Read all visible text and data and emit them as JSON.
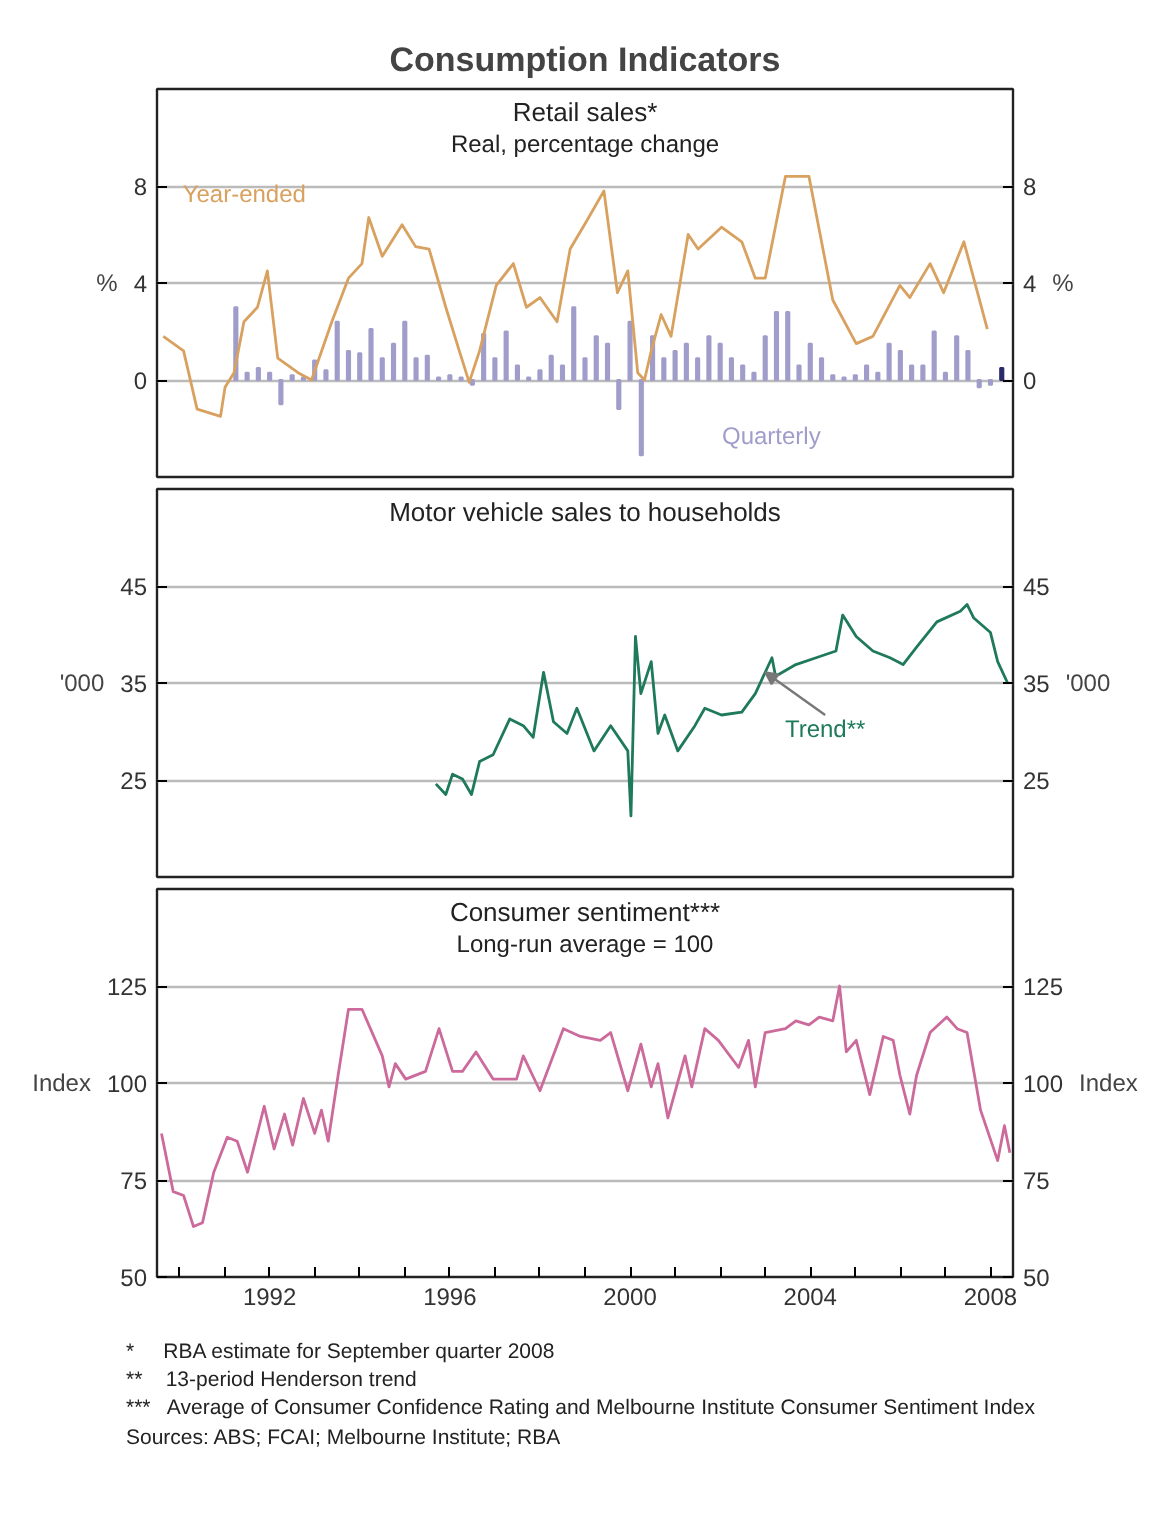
{
  "chart_data": [
    {
      "type": "line",
      "title": "Consumption Indicators",
      "subtitle": "Retail sales*\nReal, percentage change",
      "ylabel": "%",
      "y2label": "%",
      "xlim": [
        1989.5,
        2008.5
      ],
      "ylim": [
        -4,
        12
      ],
      "yticks": [
        0,
        4,
        8
      ],
      "y2lim": [
        -4,
        12
      ],
      "y2ticks": [
        0,
        4,
        8
      ],
      "grid": "y",
      "tick_labels": "y",
      "series": [
        {
          "name": "Quarterly",
          "type": "bar",
          "color": "#a09dcb",
          "colors": [
            "#a09dcb",
            "#a09dcb",
            "#a09dcb",
            "#a09dcb",
            "#a09dcb",
            "#a09dcb",
            "#a09dcb",
            "#a09dcb",
            "#a09dcb",
            "#a09dcb",
            "#a09dcb",
            "#a09dcb",
            "#a09dcb",
            "#a09dcb",
            "#a09dcb",
            "#a09dcb",
            "#a09dcb",
            "#a09dcb",
            "#a09dcb",
            "#a09dcb",
            "#a09dcb",
            "#a09dcb",
            "#a09dcb",
            "#a09dcb",
            "#a09dcb",
            "#a09dcb",
            "#a09dcb",
            "#a09dcb",
            "#a09dcb",
            "#a09dcb",
            "#a09dcb",
            "#a09dcb",
            "#a09dcb",
            "#a09dcb",
            "#a09dcb",
            "#a09dcb",
            "#a09dcb",
            "#a09dcb",
            "#a09dcb",
            "#a09dcb",
            "#a09dcb",
            "#a09dcb",
            "#a09dcb",
            "#a09dcb",
            "#a09dcb",
            "#a09dcb",
            "#a09dcb",
            "#a09dcb",
            "#a09dcb",
            "#a09dcb",
            "#a09dcb",
            "#a09dcb",
            "#a09dcb",
            "#a09dcb",
            "#a09dcb",
            "#a09dcb",
            "#a09dcb",
            "#a09dcb",
            "#a09dcb",
            "#a09dcb",
            "#a09dcb",
            "#a09dcb",
            "#a09dcb",
            "#a09dcb",
            "#a09dcb",
            "#a09dcb",
            "#a09dcb",
            "#a09dcb",
            "#2b2b6b"
          ],
          "x": [
            1991.25,
            1991.5,
            1991.75,
            1992.0,
            1992.25,
            1992.5,
            1992.75,
            1993.0,
            1993.25,
            1993.5,
            1993.75,
            1994.0,
            1994.25,
            1994.5,
            1994.75,
            1995.0,
            1995.25,
            1995.5,
            1995.75,
            1996.0,
            1996.25,
            1996.5,
            1996.75,
            1997.0,
            1997.25,
            1997.5,
            1997.75,
            1998.0,
            1998.25,
            1998.5,
            1998.75,
            1999.0,
            1999.25,
            1999.5,
            1999.75,
            2000.0,
            2000.25,
            2000.5,
            2000.75,
            2001.0,
            2001.25,
            2001.5,
            2001.75,
            2002.0,
            2002.25,
            2002.5,
            2002.75,
            2003.0,
            2003.25,
            2003.5,
            2003.75,
            2004.0,
            2004.25,
            2004.5,
            2004.75,
            2005.0,
            2005.25,
            2005.5,
            2005.75,
            2006.0,
            2006.25,
            2006.5,
            2006.75,
            2007.0,
            2007.25,
            2007.5,
            2007.75,
            2008.0,
            2008.25
          ],
          "values": [
            3.0,
            0.3,
            0.5,
            0.3,
            -1.0,
            0.2,
            0.1,
            0.8,
            0.4,
            2.4,
            1.2,
            1.1,
            2.1,
            0.9,
            1.5,
            2.4,
            0.9,
            1.0,
            0.1,
            0.2,
            0.1,
            -0.2,
            1.9,
            0.9,
            2.0,
            0.6,
            0.1,
            0.4,
            1.0,
            0.6,
            3.0,
            0.9,
            1.8,
            1.5,
            -1.2,
            2.4,
            -3.1,
            1.8,
            0.9,
            1.2,
            1.5,
            0.9,
            1.8,
            1.5,
            0.9,
            0.6,
            0.3,
            1.8,
            2.8,
            2.8,
            0.6,
            1.5,
            0.9,
            0.2,
            0.1,
            0.2,
            0.6,
            0.3,
            1.5,
            1.2,
            0.6,
            0.6,
            2.0,
            0.3,
            1.8,
            1.2,
            -0.3,
            -0.2,
            0.5
          ]
        },
        {
          "name": "Year-ended",
          "type": "line",
          "color": "#d9a15f",
          "x": [
            1989.64,
            1990.09,
            1990.39,
            1990.91,
            1991.01,
            1991.21,
            1991.43,
            1991.73,
            1991.95,
            1992.18,
            1992.63,
            1992.93,
            1993.38,
            1993.75,
            1994.05,
            1994.2,
            1994.5,
            1994.94,
            1995.24,
            1995.54,
            1995.91,
            1996.21,
            1996.43,
            1996.66,
            1997.03,
            1997.41,
            1997.7,
            1998.0,
            1998.38,
            1998.67,
            1999.05,
            1999.42,
            1999.72,
            1999.95,
            2000.17,
            2000.32,
            2000.47,
            2000.69,
            2000.91,
            2001.29,
            2001.51,
            2002.03,
            2002.48,
            2002.78,
            2003.0,
            2003.45,
            2003.97,
            2004.5,
            2005.02,
            2005.39,
            2005.99,
            2006.21,
            2006.66,
            2006.96,
            2007.41,
            2007.93
          ],
          "values": [
            1.8,
            1.2,
            -1.2,
            -1.5,
            -0.3,
            0.3,
            2.4,
            3.0,
            4.5,
            0.9,
            0.3,
            0.0,
            2.4,
            4.2,
            4.8,
            6.7,
            5.1,
            6.4,
            5.5,
            5.4,
            3.0,
            1.2,
            -0.1,
            1.2,
            3.9,
            4.8,
            3.0,
            3.4,
            2.4,
            5.4,
            6.6,
            7.8,
            3.6,
            4.5,
            0.3,
            0.0,
            1.2,
            2.7,
            1.8,
            6.0,
            5.4,
            6.3,
            5.7,
            4.2,
            4.2,
            8.4,
            8.4,
            3.3,
            1.5,
            1.8,
            3.9,
            3.4,
            4.8,
            3.6,
            5.7,
            2.1
          ]
        }
      ]
    },
    {
      "type": "line",
      "subtitle": "Motor vehicle sales to households",
      "ylabel": "'000",
      "y2label": "'000",
      "xlim": [
        1989.5,
        2008.5
      ],
      "ylim": [
        15,
        55
      ],
      "yticks": [
        25,
        35,
        45
      ],
      "y2lim": [
        15,
        55
      ],
      "y2ticks": [
        25,
        35,
        45
      ],
      "grid": "y",
      "tick_labels": "y",
      "annotations": [
        {
          "text": "Trend**",
          "x": 2003.0,
          "y": 36.1
        }
      ],
      "series": [
        {
          "color": "#1f7a5c",
          "x": [
            1995.69,
            1995.91,
            1996.06,
            1996.28,
            1996.48,
            1996.66,
            1996.96,
            1997.33,
            1997.63,
            1997.85,
            1998.08,
            1998.3,
            1998.6,
            1998.82,
            1999.2,
            1999.57,
            1999.95,
            2000.02,
            2000.12,
            2000.24,
            2000.47,
            2000.62,
            2000.77,
            2001.06,
            2001.44,
            2001.66,
            2002.03,
            2002.48,
            2002.78,
            2003.15,
            2003.23,
            2003.68,
            2004.13,
            2004.57,
            2004.72,
            2005.02,
            2005.39,
            2005.77,
            2006.06,
            2006.36,
            2006.81,
            2007.33,
            2007.48,
            2007.63,
            2008.0,
            2008.16,
            2008.38
          ],
          "values": [
            24.6,
            23.5,
            25.6,
            25.1,
            23.5,
            26.9,
            27.6,
            31.3,
            30.6,
            29.4,
            36.1,
            31.0,
            29.8,
            32.4,
            28.0,
            30.6,
            28.0,
            21.3,
            39.8,
            33.9,
            37.2,
            29.8,
            31.7,
            28.0,
            30.6,
            32.4,
            31.7,
            32.0,
            33.9,
            37.6,
            35.7,
            36.9,
            37.6,
            38.3,
            42.0,
            39.8,
            38.3,
            37.6,
            36.9,
            38.7,
            41.3,
            42.4,
            43.1,
            41.7,
            40.2,
            37.2,
            35.0
          ]
        }
      ]
    },
    {
      "type": "line",
      "subtitle": "Consumer sentiment***\nLong-run average = 100",
      "ylabel": "Index",
      "y2label": "Index",
      "xlim": [
        1989.5,
        2008.5
      ],
      "ylim": [
        50,
        150
      ],
      "yticks": [
        50,
        75,
        100,
        125
      ],
      "y2lim": [
        50,
        150
      ],
      "y2ticks": [
        50,
        75,
        100,
        125
      ],
      "grid": "y",
      "xticks": [
        {
          "value": 1990,
          "label": null
        },
        {
          "value": 1991,
          "label": null
        },
        1992,
        {
          "value": 1993,
          "label": null
        },
        {
          "value": 1994,
          "label": null
        },
        {
          "value": 1995,
          "label": null
        },
        1996,
        {
          "value": 1997,
          "label": null
        },
        {
          "value": 1998,
          "label": null
        },
        {
          "value": 1999,
          "label": null
        },
        2000,
        {
          "value": 2001,
          "label": null
        },
        {
          "value": 2002,
          "label": null
        },
        {
          "value": 2003,
          "label": null
        },
        2004,
        {
          "value": 2005,
          "label": null
        },
        {
          "value": 2006,
          "label": null
        },
        {
          "value": 2007,
          "label": null
        },
        2008
      ],
      "annotations": [
        "*     RBA estimate for September quarter 2008",
        "**    13-period Henderson trend",
        "***   Average of Consumer Confidence Rating and Melbourne Institute Consumer Sentiment Index",
        "Sources: ABS; FCAI; Melbourne Institute; RBA"
      ],
      "series": [
        {
          "color": "#cc6a9c",
          "x": [
            1989.6,
            1989.86,
            1990.09,
            1990.31,
            1990.51,
            1990.76,
            1991.06,
            1991.28,
            1991.51,
            1991.88,
            1992.1,
            1992.33,
            1992.51,
            1992.75,
            1993.0,
            1993.15,
            1993.3,
            1993.52,
            1993.75,
            1994.05,
            1994.5,
            1994.65,
            1994.79,
            1995.02,
            1995.46,
            1995.76,
            1996.06,
            1996.28,
            1996.58,
            1996.96,
            1997.48,
            1997.63,
            1998.0,
            1998.52,
            1998.9,
            1999.34,
            1999.57,
            1999.95,
            2000.24,
            2000.47,
            2000.62,
            2000.84,
            2001.22,
            2001.37,
            2001.66,
            2001.96,
            2002.41,
            2002.63,
            2002.78,
            2003.0,
            2003.45,
            2003.68,
            2003.97,
            2004.2,
            2004.5,
            2004.65,
            2004.8,
            2005.02,
            2005.32,
            2005.62,
            2005.84,
            2005.99,
            2006.21,
            2006.36,
            2006.66,
            2007.03,
            2007.26,
            2007.48,
            2007.78,
            2008.16,
            2008.31,
            2008.43
          ],
          "values": [
            87,
            72,
            71,
            63,
            64,
            77,
            86,
            85,
            77,
            94,
            83,
            92,
            84,
            96,
            87,
            93,
            85,
            102,
            119,
            119,
            107,
            99,
            105,
            101,
            103,
            114,
            103,
            103,
            108,
            101,
            101,
            107,
            98,
            114,
            112,
            111,
            113,
            98,
            110,
            99,
            105,
            91,
            107,
            99,
            114,
            111,
            104,
            111,
            99,
            113,
            114,
            116,
            115,
            117,
            116,
            125,
            108,
            111,
            97,
            112,
            111,
            102,
            92,
            102,
            113,
            117,
            114,
            113,
            93,
            80,
            89,
            82
          ]
        }
      ]
    }
  ]
}
